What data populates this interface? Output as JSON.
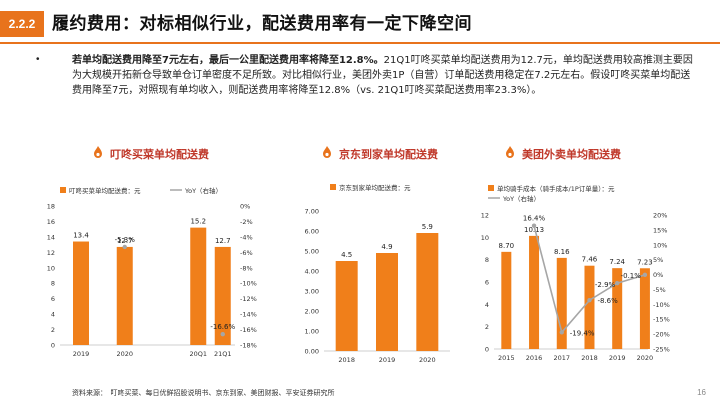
{
  "header": {
    "badge": "2.2.2",
    "title": "履约费用：对标相似行业，配送费用率有一定下降空间"
  },
  "body": {
    "bullet": "•",
    "bold_text": "若单均配送费用降至7元左右，最后一公里配送费用率将降至12.8%。",
    "text": "21Q1叮咚买菜单均配送费用为12.7元，单均配送费用较高推测主要因为大规模开拓新仓导致单仓订单密度不足所致。对比相似行业，美团外卖1P（自营）订单配送费用稳定在7.2元左右。假设叮咚买菜单均配送费用降至7元，对照现有单均收入，则配送费用率将降至12.8%（vs. 21Q1叮咚买菜配送费用率23.3%）。"
  },
  "sections": [
    {
      "title": "叮咚买菜单均配送费"
    },
    {
      "title": "京东到家单均配送费"
    },
    {
      "title": "美团外卖单均配送费"
    }
  ],
  "chart_data": [
    {
      "type": "bar",
      "categories": [
        "2019",
        "2020",
        "20Q1",
        "21Q1"
      ],
      "series": [
        {
          "name": "叮咚买菜单均配送费：元",
          "axis": "left",
          "values": [
            13.4,
            12.7,
            15.2,
            12.7
          ],
          "labels": [
            "13.4",
            "12.7",
            "15.2",
            "12.7"
          ]
        },
        {
          "name": "YoY（右轴）",
          "axis": "right",
          "type": "line",
          "values": [
            null,
            -5.3,
            null,
            -16.6
          ],
          "labels": [
            "",
            "-5.3%",
            "",
            "-16.6%"
          ]
        }
      ],
      "yticks_left": [
        "18",
        "16",
        "14",
        "12",
        "10",
        "8",
        "6",
        "4",
        "2",
        "0"
      ],
      "yticks_right": [
        "0%",
        "-2%",
        "-4%",
        "-6%",
        "-8%",
        "-10%",
        "-12%",
        "-14%",
        "-16%",
        "-18%"
      ],
      "ylim_left": [
        0,
        18
      ],
      "ylim_right": [
        -18,
        0
      ],
      "legend": "top"
    },
    {
      "type": "bar",
      "categories": [
        "2018",
        "2019",
        "2020"
      ],
      "series": [
        {
          "name": "京东到家单均配送费：元",
          "values": [
            4.5,
            4.9,
            5.9
          ],
          "labels": [
            "4.5",
            "4.9",
            "5.9"
          ]
        }
      ],
      "yticks_left": [
        "7.00",
        "6.00",
        "5.00",
        "4.00",
        "3.00",
        "2.00",
        "1.00",
        "0.00"
      ],
      "ylim_left": [
        0,
        7
      ],
      "legend": "top"
    },
    {
      "type": "bar",
      "categories": [
        "2015",
        "2016",
        "2017",
        "2018",
        "2019",
        "2020"
      ],
      "series": [
        {
          "name": "单均骑手成本（骑手成本/1P订单量）：元",
          "axis": "left",
          "values": [
            8.7,
            10.13,
            8.16,
            7.46,
            7.24,
            7.23
          ],
          "labels": [
            "8.70",
            "10.13",
            "8.16",
            "7.46",
            "7.24",
            "7.23"
          ]
        },
        {
          "name": "YoY（右轴）",
          "axis": "right",
          "type": "line",
          "values": [
            null,
            16.4,
            -19.4,
            -8.6,
            -2.9,
            -0.1
          ],
          "labels": [
            "",
            "16.4%",
            "-19.4%",
            "-8.6%",
            "-2.9%",
            "-0.1%"
          ]
        }
      ],
      "yticks_left": [
        "12",
        "10",
        "8",
        "6",
        "4",
        "2",
        "0"
      ],
      "yticks_right": [
        "20%",
        "15%",
        "10%",
        "5%",
        "0%",
        "-5%",
        "-10%",
        "-15%",
        "-20%",
        "-25%"
      ],
      "ylim_left": [
        0,
        12
      ],
      "ylim_right": [
        -25,
        20
      ],
      "legend": "top"
    }
  ],
  "footer": {
    "source": "资料来源：　叮咚买菜、每日优鲜招股说明书、京东到家、美团财报、平安证券研究所",
    "page": "16"
  },
  "colors": {
    "accent": "#E8731C",
    "bar": "#F07F1A",
    "line": "#A6A6A6",
    "title": "#C0392B"
  }
}
